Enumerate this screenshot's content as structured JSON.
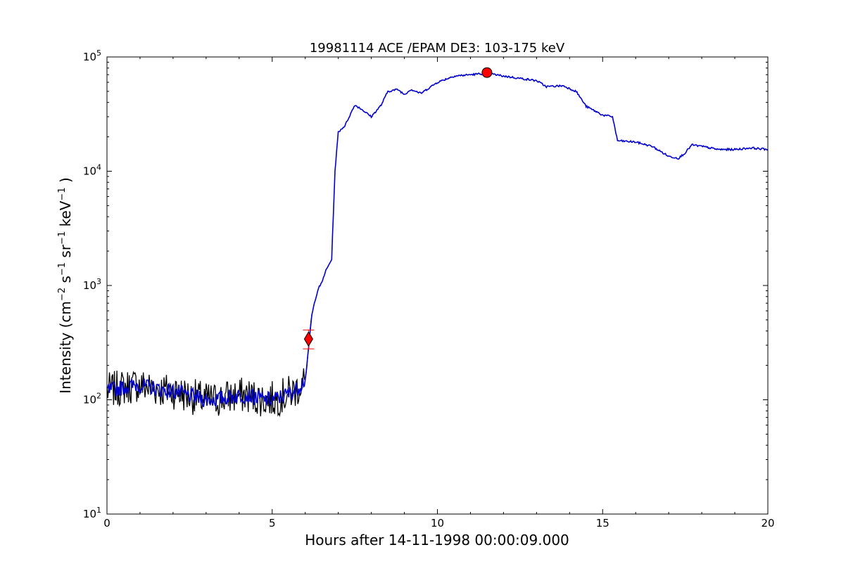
{
  "chart_data": {
    "type": "line",
    "title": "19981114 ACE /EPAM DE3: 103-175 keV",
    "xlabel": "Hours after 14-11-1998 00:00:09.000",
    "ylabel_parts": [
      "Intensity (cm",
      "−2",
      " s",
      "−1",
      " sr",
      "−1",
      " keV",
      "−1",
      " )"
    ],
    "xlim": [
      0,
      20
    ],
    "ylim": [
      10,
      100000
    ],
    "yscale": "log",
    "x_ticks": [
      "0",
      "5",
      "10",
      "15",
      "20"
    ],
    "y_ticks": [
      {
        "base": "10",
        "exp": "1"
      },
      {
        "base": "10",
        "exp": "2"
      },
      {
        "base": "10",
        "exp": "3"
      },
      {
        "base": "10",
        "exp": "4"
      },
      {
        "base": "10",
        "exp": "5"
      }
    ],
    "grid": false,
    "series": [
      {
        "color": "#000000",
        "x": [
          0.0,
          0.3,
          0.6,
          0.9,
          1.2,
          1.5,
          1.8,
          2.1,
          2.4,
          2.7,
          3.0,
          3.3,
          3.6,
          3.9,
          4.2,
          4.5,
          4.8,
          5.1,
          5.4,
          5.7,
          5.9,
          6.0,
          6.05,
          6.1,
          6.15,
          6.2
        ],
        "y": [
          120,
          125,
          130,
          135,
          130,
          125,
          120,
          118,
          110,
          105,
          100,
          100,
          105,
          108,
          110,
          105,
          100,
          102,
          110,
          120,
          140,
          150,
          200,
          280,
          400,
          550
        ]
      },
      {
        "color": "#0000cc",
        "x": [
          0.0,
          0.3,
          0.6,
          0.9,
          1.2,
          1.5,
          1.8,
          2.1,
          2.4,
          2.7,
          3.0,
          3.3,
          3.6,
          3.9,
          4.2,
          4.5,
          4.8,
          5.1,
          5.4,
          5.7,
          5.9,
          6.0,
          6.05,
          6.1,
          6.15,
          6.2,
          6.3,
          6.4,
          6.5,
          6.6,
          6.8,
          6.9,
          7.0,
          7.2,
          7.5,
          7.7,
          8.0,
          8.3,
          8.5,
          8.8,
          9.0,
          9.2,
          9.5,
          10.0,
          10.5,
          11.0,
          11.5,
          12.0,
          12.5,
          13.0,
          13.3,
          13.8,
          14.2,
          14.5,
          15.0,
          15.3,
          15.45,
          16.0,
          16.5,
          17.0,
          17.3,
          17.5,
          17.7,
          18.0,
          18.5,
          19.0,
          19.5,
          20.0
        ],
        "y": [
          120,
          125,
          130,
          135,
          130,
          125,
          120,
          118,
          110,
          105,
          100,
          100,
          105,
          108,
          110,
          105,
          100,
          102,
          110,
          120,
          140,
          150,
          200,
          280,
          400,
          550,
          750,
          950,
          1050,
          1300,
          1700,
          10000,
          22000,
          25000,
          38000,
          35000,
          30000,
          38000,
          50000,
          52000,
          47000,
          52000,
          48000,
          60000,
          68000,
          70000,
          72000,
          68000,
          65000,
          62000,
          55000,
          56000,
          50000,
          37000,
          31000,
          30000,
          18500,
          18000,
          16500,
          13500,
          13000,
          14500,
          17000,
          16500,
          15500,
          15500,
          16000,
          15500
        ]
      }
    ],
    "markers": [
      {
        "type": "circle",
        "x": 11.5,
        "y": 73000,
        "color": "#ff0000"
      },
      {
        "type": "diamond",
        "x": 6.1,
        "y": 340,
        "color": "#ff0000"
      }
    ]
  }
}
